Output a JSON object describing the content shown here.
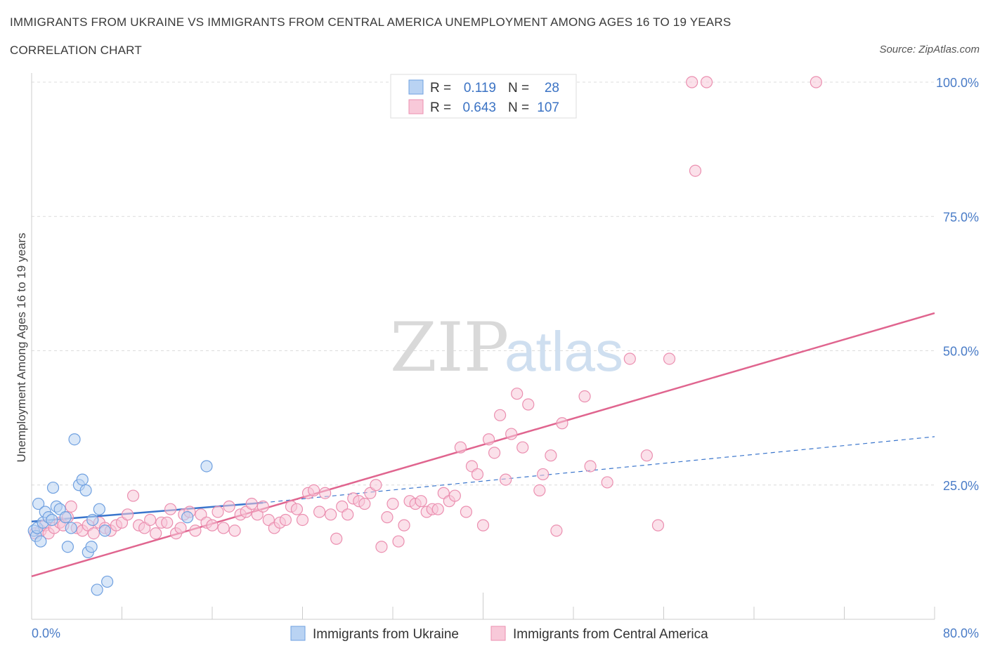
{
  "header": {
    "title": "IMMIGRANTS FROM UKRAINE VS IMMIGRANTS FROM CENTRAL AMERICA UNEMPLOYMENT AMONG AGES 16 TO 19 YEARS",
    "subtitle": "CORRELATION CHART",
    "source": "Source: ZipAtlas.com"
  },
  "watermark": {
    "zip": "ZIP",
    "atlas": "atlas"
  },
  "colors": {
    "ukraine": "#6fa0e0",
    "ukraine_fill": "#b9d3f3",
    "ukraine_line": "#3a75cc",
    "central": "#eb8fb0",
    "central_fill": "#f8c9d9",
    "central_line": "#e0658f"
  },
  "legend": {
    "r_label": "R =",
    "n_label": "N =",
    "rows": [
      {
        "r": "0.119",
        "n": "28"
      },
      {
        "r": "0.643",
        "n": "107"
      }
    ]
  },
  "chart_data": {
    "type": "scatter",
    "title": "IMMIGRANTS FROM UKRAINE VS IMMIGRANTS FROM CENTRAL AMERICA UNEMPLOYMENT AMONG AGES 16 TO 19 YEARS",
    "xlabel": "",
    "ylabel": "Unemployment Among Ages 16 to 19 years",
    "xlim": [
      0,
      80
    ],
    "ylim": [
      0,
      100
    ],
    "x_tick_labels": [
      "0.0%",
      "80.0%"
    ],
    "y_ticks": [
      25,
      50,
      75,
      100
    ],
    "y_tick_labels": [
      "25.0%",
      "50.0%",
      "75.0%",
      "100.0%"
    ],
    "grid": true,
    "legend_position": "top-center",
    "series": [
      {
        "name": "Immigrants from Ukraine",
        "r": 0.119,
        "n": 28,
        "trend_solid": [
          [
            0,
            18.2
          ],
          [
            20.5,
            21.7
          ]
        ],
        "trend_dashed": [
          [
            20.5,
            21.7
          ],
          [
            80,
            34.0
          ]
        ],
        "points": [
          [
            0.2,
            16.5
          ],
          [
            0.4,
            15.5
          ],
          [
            0.5,
            17.0
          ],
          [
            0.6,
            21.5
          ],
          [
            0.8,
            14.5
          ],
          [
            1.0,
            18.0
          ],
          [
            1.2,
            20.0
          ],
          [
            1.5,
            19.0
          ],
          [
            1.9,
            24.5
          ],
          [
            2.2,
            21.0
          ],
          [
            2.5,
            20.5
          ],
          [
            3.0,
            19.0
          ],
          [
            3.2,
            13.5
          ],
          [
            3.5,
            17.0
          ],
          [
            3.8,
            33.5
          ],
          [
            4.2,
            25.0
          ],
          [
            4.5,
            26.0
          ],
          [
            4.8,
            24.0
          ],
          [
            5.0,
            12.5
          ],
          [
            5.3,
            13.5
          ],
          [
            5.4,
            18.5
          ],
          [
            5.8,
            5.5
          ],
          [
            6.0,
            20.5
          ],
          [
            6.5,
            16.5
          ],
          [
            6.7,
            7.0
          ],
          [
            13.8,
            19.0
          ],
          [
            15.5,
            28.5
          ],
          [
            1.8,
            18.5
          ]
        ]
      },
      {
        "name": "Immigrants from Central America",
        "r": 0.643,
        "n": 107,
        "trend_solid": [
          [
            0,
            8.0
          ],
          [
            80,
            57.0
          ]
        ],
        "points": [
          [
            0.3,
            16.0
          ],
          [
            0.8,
            16.5
          ],
          [
            1.2,
            17.5
          ],
          [
            1.5,
            16.0
          ],
          [
            2.0,
            17.0
          ],
          [
            2.5,
            18.0
          ],
          [
            2.8,
            17.5
          ],
          [
            3.2,
            19.0
          ],
          [
            3.5,
            21.0
          ],
          [
            4.0,
            17.0
          ],
          [
            4.5,
            16.5
          ],
          [
            5.0,
            17.5
          ],
          [
            5.5,
            16.0
          ],
          [
            6.0,
            18.0
          ],
          [
            6.5,
            17.0
          ],
          [
            7.0,
            16.5
          ],
          [
            7.5,
            17.5
          ],
          [
            8.0,
            18.0
          ],
          [
            8.5,
            19.5
          ],
          [
            9.0,
            23.0
          ],
          [
            9.5,
            17.5
          ],
          [
            10.0,
            17.0
          ],
          [
            10.5,
            18.5
          ],
          [
            11.0,
            16.0
          ],
          [
            11.5,
            18.0
          ],
          [
            12.0,
            18.0
          ],
          [
            12.3,
            20.5
          ],
          [
            12.8,
            16.0
          ],
          [
            13.2,
            17.0
          ],
          [
            13.5,
            19.5
          ],
          [
            14.0,
            20.0
          ],
          [
            14.5,
            16.5
          ],
          [
            15.0,
            19.5
          ],
          [
            15.5,
            18.0
          ],
          [
            16.0,
            17.5
          ],
          [
            16.5,
            20.0
          ],
          [
            17.0,
            17.0
          ],
          [
            17.5,
            21.0
          ],
          [
            18.0,
            16.5
          ],
          [
            18.5,
            19.5
          ],
          [
            19.0,
            20.0
          ],
          [
            19.5,
            21.5
          ],
          [
            20.0,
            19.5
          ],
          [
            20.5,
            21.0
          ],
          [
            21.0,
            18.5
          ],
          [
            21.5,
            17.0
          ],
          [
            22.0,
            18.0
          ],
          [
            22.5,
            18.5
          ],
          [
            23.0,
            21.0
          ],
          [
            23.5,
            20.5
          ],
          [
            24.0,
            18.5
          ],
          [
            24.5,
            23.5
          ],
          [
            25.0,
            24.0
          ],
          [
            25.5,
            20.0
          ],
          [
            26.0,
            23.5
          ],
          [
            26.5,
            19.5
          ],
          [
            27.0,
            15.0
          ],
          [
            27.5,
            21.0
          ],
          [
            28.0,
            19.5
          ],
          [
            28.5,
            22.5
          ],
          [
            29.0,
            22.0
          ],
          [
            29.5,
            21.5
          ],
          [
            30.0,
            23.5
          ],
          [
            30.5,
            25.0
          ],
          [
            31.0,
            13.5
          ],
          [
            31.5,
            19.0
          ],
          [
            32.0,
            21.5
          ],
          [
            32.5,
            14.5
          ],
          [
            33.0,
            17.5
          ],
          [
            33.5,
            22.0
          ],
          [
            34.0,
            21.5
          ],
          [
            34.5,
            22.0
          ],
          [
            35.0,
            20.0
          ],
          [
            35.5,
            20.5
          ],
          [
            36.0,
            20.5
          ],
          [
            36.5,
            23.5
          ],
          [
            37.0,
            22.0
          ],
          [
            37.5,
            23.0
          ],
          [
            38.0,
            32.0
          ],
          [
            38.5,
            20.0
          ],
          [
            39.0,
            28.5
          ],
          [
            39.5,
            27.0
          ],
          [
            40.0,
            17.5
          ],
          [
            40.5,
            33.5
          ],
          [
            41.0,
            31.0
          ],
          [
            41.5,
            38.0
          ],
          [
            42.0,
            26.0
          ],
          [
            42.5,
            34.5
          ],
          [
            43.0,
            42.0
          ],
          [
            43.5,
            32.0
          ],
          [
            44.0,
            40.0
          ],
          [
            45.0,
            24.0
          ],
          [
            45.3,
            27.0
          ],
          [
            46.0,
            30.5
          ],
          [
            46.5,
            16.5
          ],
          [
            47.0,
            36.5
          ],
          [
            49.0,
            41.5
          ],
          [
            49.5,
            28.5
          ],
          [
            51.0,
            25.5
          ],
          [
            53.0,
            48.5
          ],
          [
            54.5,
            30.5
          ],
          [
            55.5,
            17.5
          ],
          [
            56.5,
            48.5
          ],
          [
            58.5,
            100.0
          ],
          [
            58.8,
            83.5
          ],
          [
            59.8,
            100.0
          ],
          [
            69.5,
            100.0
          ]
        ]
      }
    ]
  },
  "bottom_legend": [
    {
      "label": "Immigrants from Ukraine"
    },
    {
      "label": "Immigrants from Central America"
    }
  ]
}
